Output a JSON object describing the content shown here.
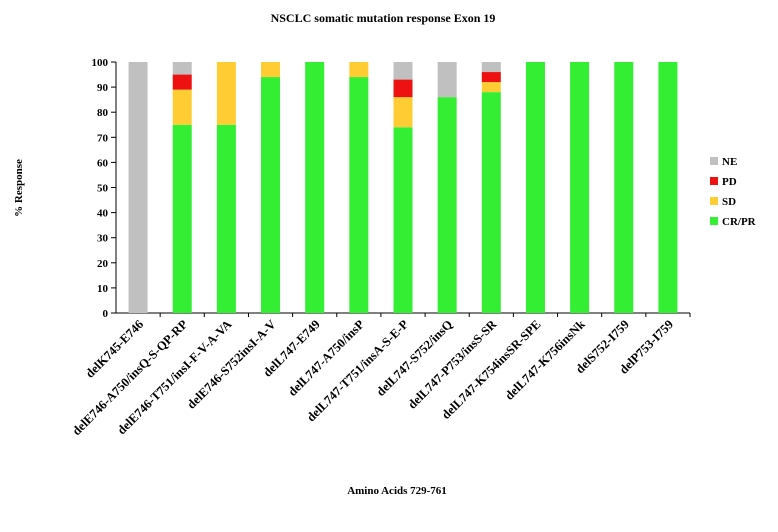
{
  "chart_data": {
    "type": "bar",
    "stacked": true,
    "title": "NSCLC somatic mutation response Exon 19",
    "xlabel": "Amino Acids 729-761",
    "ylabel": "% Response",
    "ylim": [
      0,
      100
    ],
    "yticks": [
      "0",
      "10",
      "20",
      "30",
      "40",
      "50",
      "60",
      "70",
      "80",
      "90",
      "100"
    ],
    "grid": false,
    "legend_position": "right",
    "categories": [
      "delK745-E746",
      "delE746-A750/insQ-S-QP-RP",
      "delE746-T751/insI-F-V-A-VA",
      "delE746-S752insI-A-V",
      "delL747-E749",
      "delL747-A750/insP",
      "delL747-T751/insA-S-E-P",
      "delL747-S752/insQ",
      "delL747-P753/insS-SR",
      "delL747-K754insSR-SPE",
      "delL747-K756insNk",
      "delS752-I759",
      "delP753-I759"
    ],
    "series": [
      {
        "name": "CR/PR",
        "color": "#33ee33",
        "values": [
          0,
          75,
          75,
          94,
          100,
          94,
          74,
          86,
          88,
          100,
          100,
          100,
          100
        ]
      },
      {
        "name": "SD",
        "color": "#ffcc33",
        "values": [
          0,
          14,
          25,
          6,
          0,
          6,
          12,
          0,
          4,
          0,
          0,
          0,
          0
        ]
      },
      {
        "name": "PD",
        "color": "#ee1111",
        "values": [
          0,
          6,
          0,
          0,
          0,
          0,
          7,
          0,
          4,
          0,
          0,
          0,
          0
        ]
      },
      {
        "name": "NE",
        "color": "#c0c0c0",
        "values": [
          100,
          5,
          0,
          0,
          0,
          0,
          7,
          14,
          4,
          0,
          0,
          0,
          0
        ]
      }
    ],
    "legend_order": [
      "NE",
      "PD",
      "SD",
      "CR/PR"
    ]
  }
}
